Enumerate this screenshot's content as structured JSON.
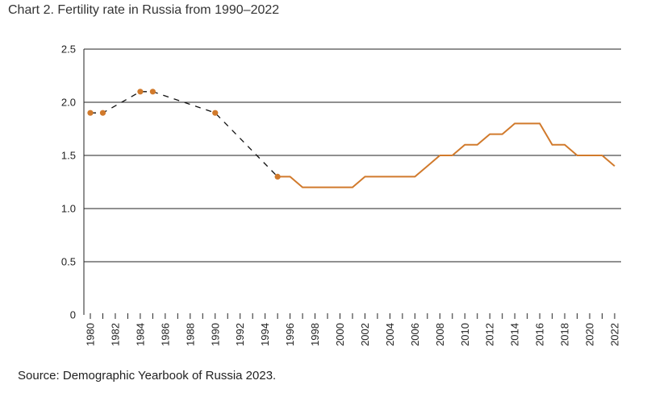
{
  "chart_data": {
    "type": "line",
    "title": "Chart 2. Fertility rate in Russia from 1990–2022",
    "source": "Source: Demographic Yearbook of Russia 2023.",
    "xlabel": "",
    "ylabel": "",
    "xlim": [
      1980,
      2022
    ],
    "ylim": [
      0,
      2.5
    ],
    "y_ticks": [
      {
        "value": 0,
        "label": "0"
      },
      {
        "value": 0.5,
        "label": "0.5"
      },
      {
        "value": 1.0,
        "label": "1.0"
      },
      {
        "value": 1.5,
        "label": "1.5"
      },
      {
        "value": 2.0,
        "label": "2.0"
      },
      {
        "value": 2.5,
        "label": "2.5"
      }
    ],
    "x_tick_labels": [
      "1980",
      "1982",
      "1984",
      "1986",
      "1988",
      "1990",
      "1992",
      "1994",
      "1996",
      "1998",
      "2000",
      "2002",
      "2004",
      "2006",
      "2008",
      "2010",
      "2012",
      "2014",
      "2016",
      "2018",
      "2020",
      "2022"
    ],
    "grid": "horizontal",
    "colors": {
      "series": "#d17a2c",
      "dashed": "#111111",
      "grid": "#222222"
    },
    "series": [
      {
        "style": "dashed-with-markers",
        "points": [
          {
            "x": 1980,
            "y": 1.9
          },
          {
            "x": 1981,
            "y": 1.9
          },
          {
            "x": 1984,
            "y": 2.1
          },
          {
            "x": 1985,
            "y": 2.1
          },
          {
            "x": 1990,
            "y": 1.9
          },
          {
            "x": 1995,
            "y": 1.3
          }
        ]
      },
      {
        "style": "solid",
        "points": [
          {
            "x": 1995,
            "y": 1.3
          },
          {
            "x": 1996,
            "y": 1.3
          },
          {
            "x": 1997,
            "y": 1.2
          },
          {
            "x": 1998,
            "y": 1.2
          },
          {
            "x": 1999,
            "y": 1.2
          },
          {
            "x": 2000,
            "y": 1.2
          },
          {
            "x": 2001,
            "y": 1.2
          },
          {
            "x": 2002,
            "y": 1.3
          },
          {
            "x": 2003,
            "y": 1.3
          },
          {
            "x": 2004,
            "y": 1.3
          },
          {
            "x": 2005,
            "y": 1.3
          },
          {
            "x": 2006,
            "y": 1.3
          },
          {
            "x": 2007,
            "y": 1.4
          },
          {
            "x": 2008,
            "y": 1.5
          },
          {
            "x": 2009,
            "y": 1.5
          },
          {
            "x": 2010,
            "y": 1.6
          },
          {
            "x": 2011,
            "y": 1.6
          },
          {
            "x": 2012,
            "y": 1.7
          },
          {
            "x": 2013,
            "y": 1.7
          },
          {
            "x": 2014,
            "y": 1.8
          },
          {
            "x": 2015,
            "y": 1.8
          },
          {
            "x": 2016,
            "y": 1.8
          },
          {
            "x": 2017,
            "y": 1.6
          },
          {
            "x": 2018,
            "y": 1.6
          },
          {
            "x": 2019,
            "y": 1.5
          },
          {
            "x": 2020,
            "y": 1.5
          },
          {
            "x": 2021,
            "y": 1.5
          },
          {
            "x": 2022,
            "y": 1.4
          }
        ]
      }
    ]
  }
}
